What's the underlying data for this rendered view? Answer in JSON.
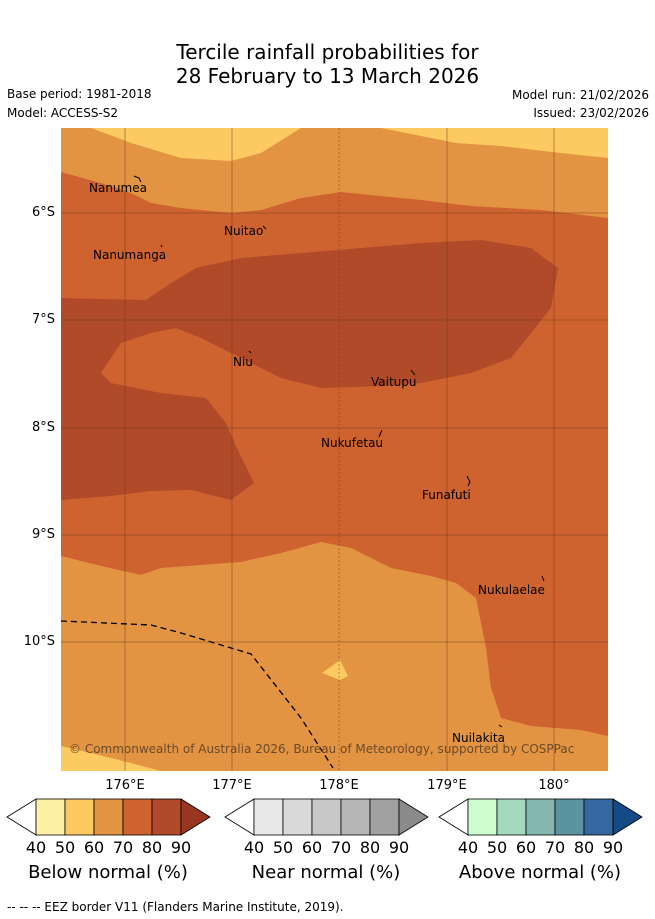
{
  "title": {
    "line1": "Tercile rainfall probabilities for",
    "line2": "28 February to 13 March 2026"
  },
  "meta": {
    "base_period": "Base period: 1981-2018",
    "model": "Model: ACCESS-S2",
    "model_run": "Model run: 21/02/2026",
    "issued": "Issued: 23/02/2026"
  },
  "map": {
    "y_ticks": [
      "6°S",
      "7°S",
      "8°S",
      "9°S",
      "10°S"
    ],
    "x_ticks": [
      "176°E",
      "177°E",
      "178°E",
      "179°E",
      "180°"
    ],
    "places": [
      "Nanumea",
      "Nuitao",
      "Nanumanga",
      "Niu",
      "Vaitupu",
      "Nukufetau",
      "Funafuti",
      "Nukulaelae",
      "Nuilakita"
    ],
    "copyright": "© Commonwealth of Australia 2026, Bureau of Meteorology, supported by COSPPac",
    "colors": {
      "below_50": "#fdc961",
      "below_60": "#e39442",
      "below_70": "#cf6330",
      "below_80": "#b04a28"
    }
  },
  "colorbars": [
    {
      "title": "Below normal (%)",
      "ticks": [
        "40",
        "50",
        "60",
        "70",
        "80",
        "90"
      ],
      "colors": [
        "#fef0a5",
        "#fdc961",
        "#e39442",
        "#cf6330",
        "#b04a28",
        "#9a3522"
      ]
    },
    {
      "title": "Near normal (%)",
      "ticks": [
        "40",
        "50",
        "60",
        "70",
        "80",
        "90"
      ],
      "colors": [
        "#e8e8e8",
        "#d9d9d9",
        "#c8c8c8",
        "#b5b5b5",
        "#a1a1a1",
        "#8a8a8a"
      ]
    },
    {
      "title": "Above normal (%)",
      "ticks": [
        "40",
        "50",
        "60",
        "70",
        "80",
        "90"
      ],
      "colors": [
        "#cdfdcd",
        "#a5d9bd",
        "#82b8b0",
        "#5b93a0",
        "#36679e",
        "#154a86"
      ]
    }
  ],
  "footer": "--  --  -- EEZ border V11 (Flanders Marine Institute, 2019)."
}
